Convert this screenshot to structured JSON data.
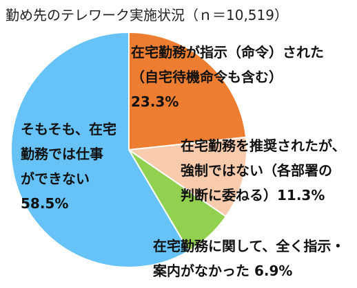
{
  "chart_data": {
    "type": "pie",
    "title": "勤め先のテレワーク実施状況（ｎ＝10,519）",
    "slices": [
      {
        "label_lines": [
          "在宅勤務が指示（命令）された",
          "（自宅待機命令も含む）"
        ],
        "value": 23.3,
        "value_text": "23.3%",
        "color": "#ED7D31"
      },
      {
        "label_lines": [
          "在宅勤務を推奨されたが、",
          "強制ではない（各部署の",
          "判断に委ねる）11.3%"
        ],
        "value": 11.3,
        "value_text": "",
        "color": "#F8CBAD"
      },
      {
        "label_lines": [
          "在宅勤務に関して、全く指示・",
          "案内がなかった  6.9%"
        ],
        "value": 6.9,
        "value_text": "",
        "color": "#92D050"
      },
      {
        "label_lines": [
          "そもそも、在宅",
          "勤務では仕事",
          "ができない"
        ],
        "value": 58.5,
        "value_text": "58.5%",
        "color": "#66C2F7"
      }
    ],
    "start_angle": "12 o'clock",
    "direction": "clockwise",
    "legend": "none"
  }
}
